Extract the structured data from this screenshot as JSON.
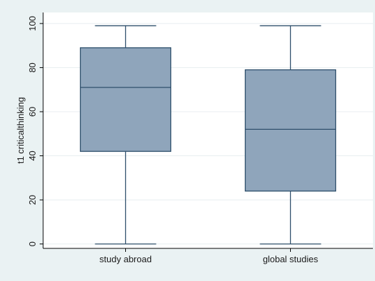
{
  "chart_data": {
    "type": "box",
    "title": "",
    "xlabel": "",
    "ylabel": "t1 criticalthinking",
    "ylim": [
      -2,
      105
    ],
    "yticks": [
      0,
      20,
      40,
      60,
      80,
      100
    ],
    "grid": true,
    "categories": [
      "study abroad",
      "global studies"
    ],
    "boxes": [
      {
        "category": "study abroad",
        "min": 0,
        "q1": 42,
        "median": 71,
        "q3": 89,
        "max": 99
      },
      {
        "category": "global studies",
        "min": 0,
        "q1": 24,
        "median": 52,
        "q3": 79,
        "max": 99
      }
    ],
    "colors": {
      "box_fill": "#8fa5bb",
      "box_stroke": "#2e4f6b",
      "plot_bg": "#ffffff",
      "outer_bg": "#eaf2f3",
      "grid": "#e8eef0",
      "axis": "#000000"
    }
  }
}
